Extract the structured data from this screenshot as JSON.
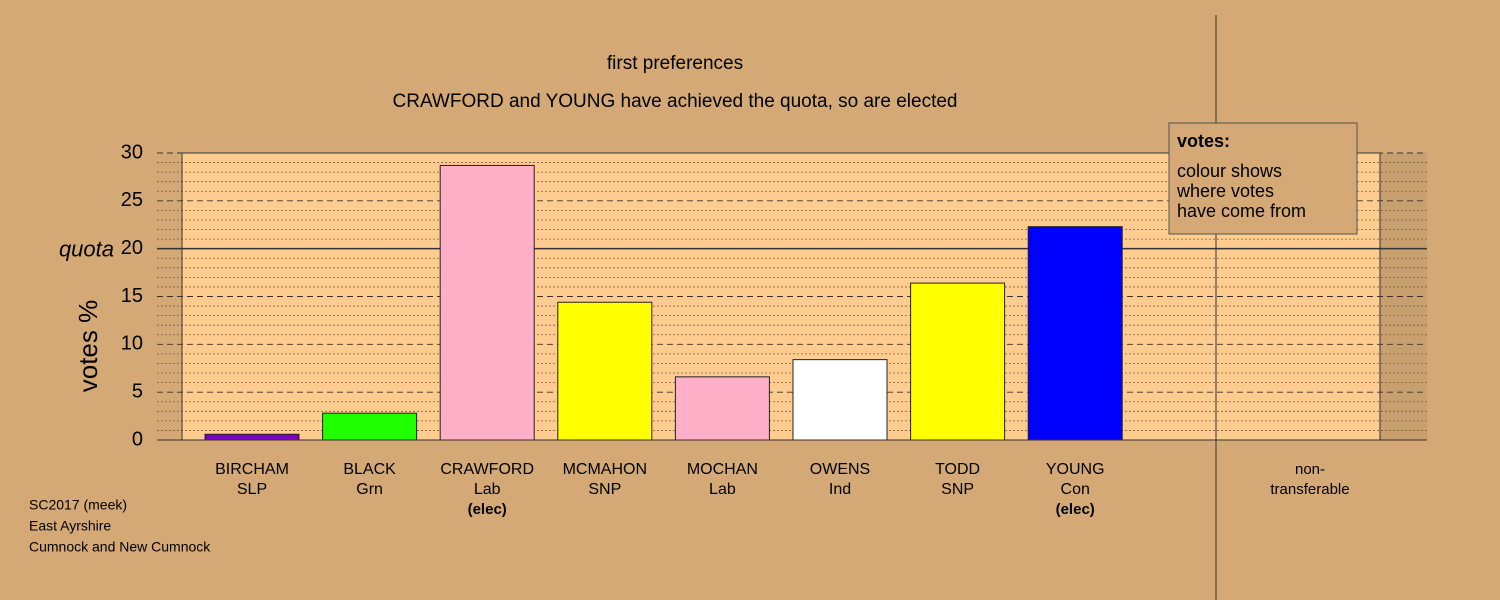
{
  "chart_data": {
    "type": "bar",
    "title": "first preferences",
    "subtitle": "CRAWFORD and YOUNG have achieved the quota, so are elected",
    "y_label": "votes %",
    "quota_label": "quota",
    "quota": 20,
    "categories": [
      [
        "BIRCHAM",
        "SLP"
      ],
      [
        "BLACK",
        "Grn"
      ],
      [
        "CRAWFORD",
        "Lab"
      ],
      [
        "MCMAHON",
        "SNP"
      ],
      [
        "MOCHAN",
        "Lab"
      ],
      [
        "OWENS",
        "Ind"
      ],
      [
        "TODD",
        "SNP"
      ],
      [
        "YOUNG",
        "Con"
      ],
      [
        "non-",
        "transferable"
      ]
    ],
    "category_notes": [
      null,
      null,
      "(elec)",
      null,
      null,
      null,
      null,
      "(elec)",
      null
    ],
    "values": [
      0.6,
      2.8,
      28.7,
      14.4,
      6.6,
      8.4,
      16.4,
      22.3,
      0
    ],
    "colors": [
      "#8000c0",
      "#20ff00",
      "#ffb0c8",
      "#ffff00",
      "#ffb0c8",
      "#ffffff",
      "#ffff00",
      "#0000ff",
      "#ffffff"
    ],
    "ylim": [
      0,
      30
    ],
    "yticks": [
      0,
      5,
      10,
      15,
      20,
      25,
      30
    ],
    "minor_yticks": [
      1,
      2,
      3,
      4,
      6,
      7,
      8,
      9,
      11,
      12,
      13,
      14,
      16,
      17,
      18,
      19,
      21,
      22,
      23,
      24,
      26,
      27,
      28,
      29
    ],
    "grid": true,
    "legend": {
      "title": "votes:",
      "lines": [
        "colour shows",
        "where votes",
        "have come from"
      ]
    },
    "footer": [
      "SC2017 (meek)",
      "East Ayrshire",
      "Cumnock and New Cumnock"
    ]
  }
}
